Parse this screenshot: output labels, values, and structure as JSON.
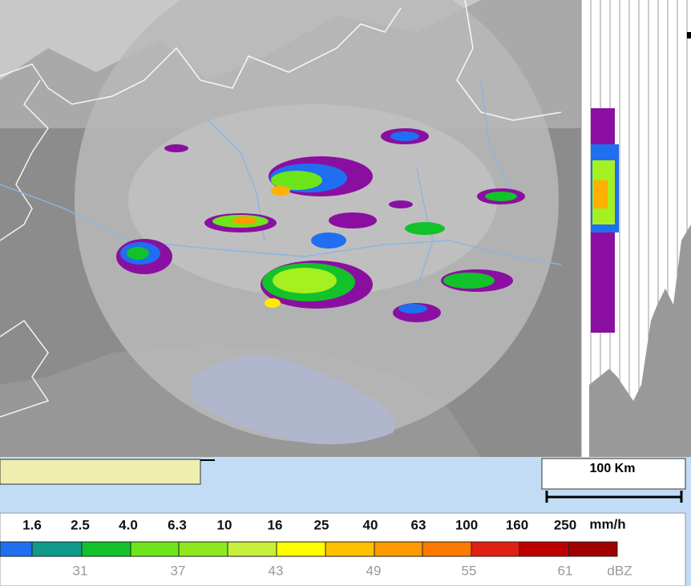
{
  "scale": {
    "label": "100 Km"
  },
  "legend": {
    "rain_labels": [
      "1.6",
      "2.5",
      "4.0",
      "6.3",
      "10",
      "16",
      "25",
      "40",
      "63",
      "100",
      "160",
      "250"
    ],
    "rain_unit": "mm/h",
    "dbz_labels": [
      "31",
      "37",
      "43",
      "49",
      "55",
      "61"
    ],
    "dbz_unit": "dBZ"
  }
}
